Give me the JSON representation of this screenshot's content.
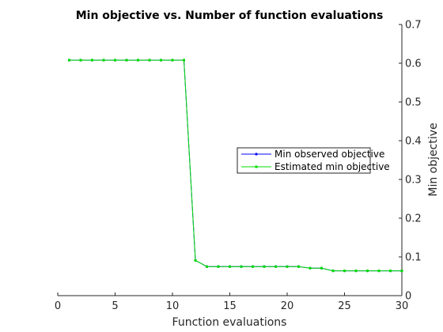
{
  "chart_data": {
    "type": "line",
    "title": "Min objective vs. Number of function evaluations",
    "xlabel": "Function evaluations",
    "ylabel": "Min objective",
    "xlim": [
      0,
      30
    ],
    "ylim": [
      0,
      0.7
    ],
    "xticks": [
      0,
      5,
      10,
      15,
      20,
      25,
      30
    ],
    "yticks": [
      0,
      0.1,
      0.2,
      0.3,
      0.4,
      0.5,
      0.6,
      0.7
    ],
    "ytick_side": "right",
    "grid": false,
    "legend_position": "center-right",
    "x": [
      1,
      2,
      3,
      4,
      5,
      6,
      7,
      8,
      9,
      10,
      11,
      12,
      13,
      14,
      15,
      16,
      17,
      18,
      19,
      20,
      21,
      22,
      23,
      24,
      25,
      26,
      27,
      28,
      29,
      30
    ],
    "series": [
      {
        "name": "Min observed objective",
        "color": "#0000ff",
        "marker": "dot",
        "values": [
          0.608,
          0.608,
          0.608,
          0.608,
          0.608,
          0.608,
          0.608,
          0.608,
          0.608,
          0.608,
          0.608,
          0.091,
          0.075,
          0.075,
          0.075,
          0.075,
          0.075,
          0.075,
          0.075,
          0.075,
          0.075,
          0.071,
          0.071,
          0.064,
          0.064,
          0.064,
          0.064,
          0.064,
          0.064,
          0.064
        ]
      },
      {
        "name": "Estimated min objective",
        "color": "#00dd00",
        "marker": "square",
        "values": [
          0.608,
          0.608,
          0.608,
          0.608,
          0.608,
          0.608,
          0.608,
          0.608,
          0.608,
          0.608,
          0.608,
          0.091,
          0.075,
          0.075,
          0.075,
          0.075,
          0.075,
          0.075,
          0.075,
          0.075,
          0.075,
          0.071,
          0.071,
          0.064,
          0.064,
          0.064,
          0.064,
          0.064,
          0.064,
          0.064
        ]
      }
    ]
  }
}
